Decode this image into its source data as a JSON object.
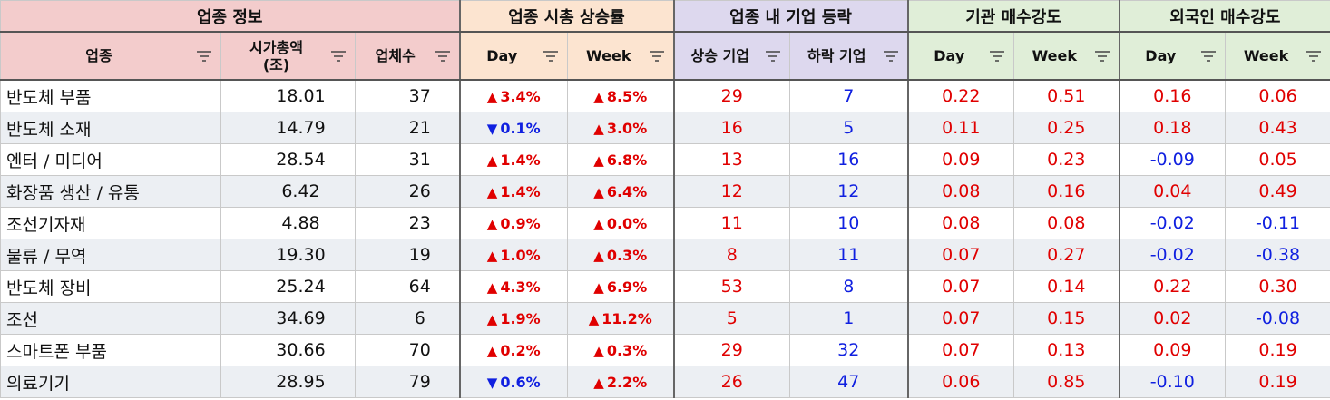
{
  "groups": [
    {
      "label": "업종 정보"
    },
    {
      "label": "업종 시총 상승률"
    },
    {
      "label": "업종 내 기업 등락"
    },
    {
      "label": "기관 매수강도"
    },
    {
      "label": "외국인 매수강도"
    }
  ],
  "columns": {
    "sector": "업종",
    "mcap": "시가총액",
    "mcap_unit": "(조)",
    "count": "업체수",
    "mc_day": "Day",
    "mc_week": "Week",
    "rising": "상승 기업",
    "falling": "하락 기업",
    "inst_day": "Day",
    "inst_week": "Week",
    "for_day": "Day",
    "for_week": "Week"
  },
  "icons": {
    "filter": "filter-icon",
    "up": "triangle-up-icon",
    "down": "triangle-down-icon"
  },
  "colors": {
    "up": "#e00000",
    "down": "#1020e0"
  },
  "rows": [
    {
      "sector": "반도체 부품",
      "mcap": "18.01",
      "count": "37",
      "day": "3.4%",
      "day_dir": "up",
      "week": "8.5%",
      "week_dir": "up",
      "rising": "29",
      "falling": "7",
      "inst_day": "0.22",
      "inst_week": "0.51",
      "for_day": "0.16",
      "for_week": "0.06"
    },
    {
      "sector": "반도체 소재",
      "mcap": "14.79",
      "count": "21",
      "day": "0.1%",
      "day_dir": "down",
      "week": "3.0%",
      "week_dir": "up",
      "rising": "16",
      "falling": "5",
      "inst_day": "0.11",
      "inst_week": "0.25",
      "for_day": "0.18",
      "for_week": "0.43"
    },
    {
      "sector": "엔터 / 미디어",
      "mcap": "28.54",
      "count": "31",
      "day": "1.4%",
      "day_dir": "up",
      "week": "6.8%",
      "week_dir": "up",
      "rising": "13",
      "falling": "16",
      "inst_day": "0.09",
      "inst_week": "0.23",
      "for_day": "-0.09",
      "for_week": "0.05"
    },
    {
      "sector": "화장품 생산 / 유통",
      "mcap": "6.42",
      "count": "26",
      "day": "1.4%",
      "day_dir": "up",
      "week": "6.4%",
      "week_dir": "up",
      "rising": "12",
      "falling": "12",
      "inst_day": "0.08",
      "inst_week": "0.16",
      "for_day": "0.04",
      "for_week": "0.49"
    },
    {
      "sector": "조선기자재",
      "mcap": "4.88",
      "count": "23",
      "day": "0.9%",
      "day_dir": "up",
      "week": "0.0%",
      "week_dir": "up",
      "rising": "11",
      "falling": "10",
      "inst_day": "0.08",
      "inst_week": "0.08",
      "for_day": "-0.02",
      "for_week": "-0.11"
    },
    {
      "sector": "물류 / 무역",
      "mcap": "19.30",
      "count": "19",
      "day": "1.0%",
      "day_dir": "up",
      "week": "0.3%",
      "week_dir": "up",
      "rising": "8",
      "falling": "11",
      "inst_day": "0.07",
      "inst_week": "0.27",
      "for_day": "-0.02",
      "for_week": "-0.38"
    },
    {
      "sector": "반도체 장비",
      "mcap": "25.24",
      "count": "64",
      "day": "4.3%",
      "day_dir": "up",
      "week": "6.9%",
      "week_dir": "up",
      "rising": "53",
      "falling": "8",
      "inst_day": "0.07",
      "inst_week": "0.14",
      "for_day": "0.22",
      "for_week": "0.30"
    },
    {
      "sector": "조선",
      "mcap": "34.69",
      "count": "6",
      "day": "1.9%",
      "day_dir": "up",
      "week": "11.2%",
      "week_dir": "up",
      "rising": "5",
      "falling": "1",
      "inst_day": "0.07",
      "inst_week": "0.15",
      "for_day": "0.02",
      "for_week": "-0.08"
    },
    {
      "sector": "스마트폰 부품",
      "mcap": "30.66",
      "count": "70",
      "day": "0.2%",
      "day_dir": "up",
      "week": "0.3%",
      "week_dir": "up",
      "rising": "29",
      "falling": "32",
      "inst_day": "0.07",
      "inst_week": "0.13",
      "for_day": "0.09",
      "for_week": "0.19"
    },
    {
      "sector": "의료기기",
      "mcap": "28.95",
      "count": "79",
      "day": "0.6%",
      "day_dir": "down",
      "week": "2.2%",
      "week_dir": "up",
      "rising": "26",
      "falling": "47",
      "inst_day": "0.06",
      "inst_week": "0.85",
      "for_day": "-0.10",
      "for_week": "0.19"
    }
  ]
}
